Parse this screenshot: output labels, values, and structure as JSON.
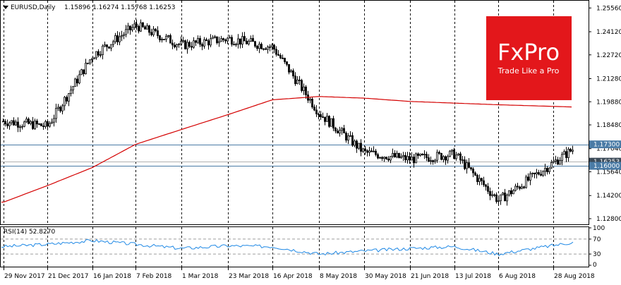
{
  "header": {
    "symbol_label": "EURUSD,Daily",
    "ohlc_label": "1.15896 1.16274 1.15768 1.16253"
  },
  "rsi": {
    "label": "RSI(14) 52.8270"
  },
  "logo": {
    "brand": "FxPro",
    "tagline": "Trade Like a Pro",
    "color": "#e3171b"
  },
  "colors": {
    "candle": "#000000",
    "ma": "#d40000",
    "rsi": "#1e88e5",
    "hline": "#4a7ba6",
    "grid": "#000000",
    "current_price_box": "#3b4a58"
  },
  "chart_data": [
    {
      "type": "candlestick",
      "title": "EURUSD,Daily",
      "ylim": [
        1.128,
        1.26
      ],
      "y_ticks": [
        "1.25560",
        "1.24120",
        "1.22720",
        "1.21280",
        "1.19880",
        "1.18480",
        "1.17040",
        "1.15640",
        "1.14200",
        "1.12800"
      ],
      "x_ticks": [
        "29 Nov 2017",
        "21 Dec 2017",
        "16 Jan 2018",
        "7 Feb 2018",
        "1 Mar 2018",
        "23 Mar 2018",
        "16 Apr 2018",
        "8 May 2018",
        "30 May 2018",
        "21 Jun 2018",
        "13 Jul 2018",
        "6 Aug 2018",
        "28 Aug 2018"
      ],
      "grid": "vertical dashed at date ticks",
      "horizontal_levels": [
        {
          "label": "1.17300",
          "value": 1.173
        },
        {
          "label": "1.16000",
          "value": 1.16
        }
      ],
      "current_price": {
        "label": "1.16253",
        "value": 1.16253
      },
      "close_series": {
        "name": "",
        "x": [
          "29 Nov 2017",
          "21 Dec 2017",
          "16 Jan 2018",
          "7 Feb 2018",
          "1 Mar 2018",
          "23 Mar 2018",
          "16 Apr 2018",
          "8 May 2018",
          "30 May 2018",
          "21 Jun 2018",
          "13 Jul 2018",
          "6 Aug 2018",
          "28 Aug 2018"
        ],
        "values": [
          1.187,
          1.184,
          1.227,
          1.245,
          1.233,
          1.237,
          1.232,
          1.192,
          1.168,
          1.164,
          1.167,
          1.139,
          1.162
        ]
      },
      "ma_series": {
        "name": "",
        "x": [
          "29 Nov 2017",
          "21 Dec 2017",
          "16 Jan 2018",
          "7 Feb 2018",
          "1 Mar 2018",
          "23 Mar 2018",
          "16 Apr 2018",
          "8 May 2018",
          "30 May 2018",
          "21 Jun 2018",
          "13 Jul 2018",
          "6 Aug 2018",
          "28 Aug 2018"
        ],
        "values": [
          1.138,
          1.148,
          1.159,
          1.173,
          1.182,
          1.191,
          1.2,
          1.202,
          1.201,
          1.199,
          1.198,
          1.197,
          1.196
        ]
      }
    },
    {
      "type": "line",
      "title": "RSI(14) 52.8270",
      "ylim": [
        0,
        100
      ],
      "y_ticks": [
        "100",
        "70",
        "30",
        "0"
      ],
      "levels": [
        70,
        30
      ],
      "series": [
        {
          "name": "",
          "x": [
            "29 Nov 2017",
            "21 Dec 2017",
            "16 Jan 2018",
            "7 Feb 2018",
            "1 Mar 2018",
            "23 Mar 2018",
            "16 Apr 2018",
            "8 May 2018",
            "30 May 2018",
            "21 Jun 2018",
            "13 Jul 2018",
            "6 Aug 2018",
            "28 Aug 2018"
          ],
          "values": [
            50,
            56,
            66,
            56,
            45,
            52,
            50,
            30,
            38,
            45,
            50,
            30,
            53
          ]
        }
      ]
    }
  ]
}
